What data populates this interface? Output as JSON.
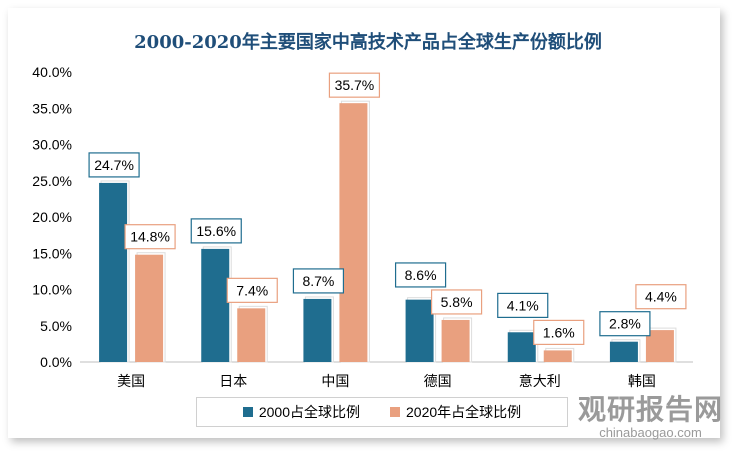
{
  "chart_data": {
    "type": "bar",
    "title": "2000-2020年主要国家中高技术产品占全球生产份额比例",
    "categories": [
      "美国",
      "日本",
      "中国",
      "德国",
      "意大利",
      "韩国"
    ],
    "series": [
      {
        "name": "2000占全球比例",
        "color": "#1f6d8f",
        "values": [
          24.7,
          15.6,
          8.7,
          8.6,
          4.1,
          2.8
        ]
      },
      {
        "name": "2020年占全球比例",
        "color": "#e9a07f",
        "values": [
          14.8,
          7.4,
          35.7,
          5.8,
          1.6,
          4.4
        ]
      }
    ],
    "ylim": [
      0,
      40
    ],
    "yticks": [
      "0.0%",
      "5.0%",
      "10.0%",
      "15.0%",
      "20.0%",
      "25.0%",
      "30.0%",
      "35.0%",
      "40.0%"
    ],
    "legend": "bottom"
  },
  "watermark": {
    "cn": "观研报告网",
    "en": "chinabaogao.com"
  }
}
